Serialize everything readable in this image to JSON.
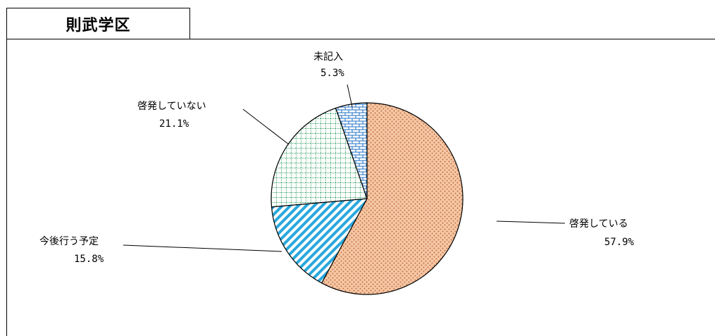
{
  "header": {
    "title": "則武学区"
  },
  "chart_data": {
    "type": "pie",
    "slices": [
      {
        "label": "啓発している",
        "value": 57.9,
        "display": "57.9%",
        "color": "#f4b38a",
        "pattern": "dots"
      },
      {
        "label": "今後行う予定",
        "value": 15.8,
        "display": "15.8%",
        "color": "#2aa8dc",
        "pattern": "diagonal"
      },
      {
        "label": "啓発していない",
        "value": 21.1,
        "display": "21.1%",
        "color": "#3aa36a",
        "pattern": "grid"
      },
      {
        "label": "未記入",
        "value": 5.3,
        "display": "5.3%",
        "color": "#1c6fc4",
        "pattern": "brick"
      }
    ]
  }
}
